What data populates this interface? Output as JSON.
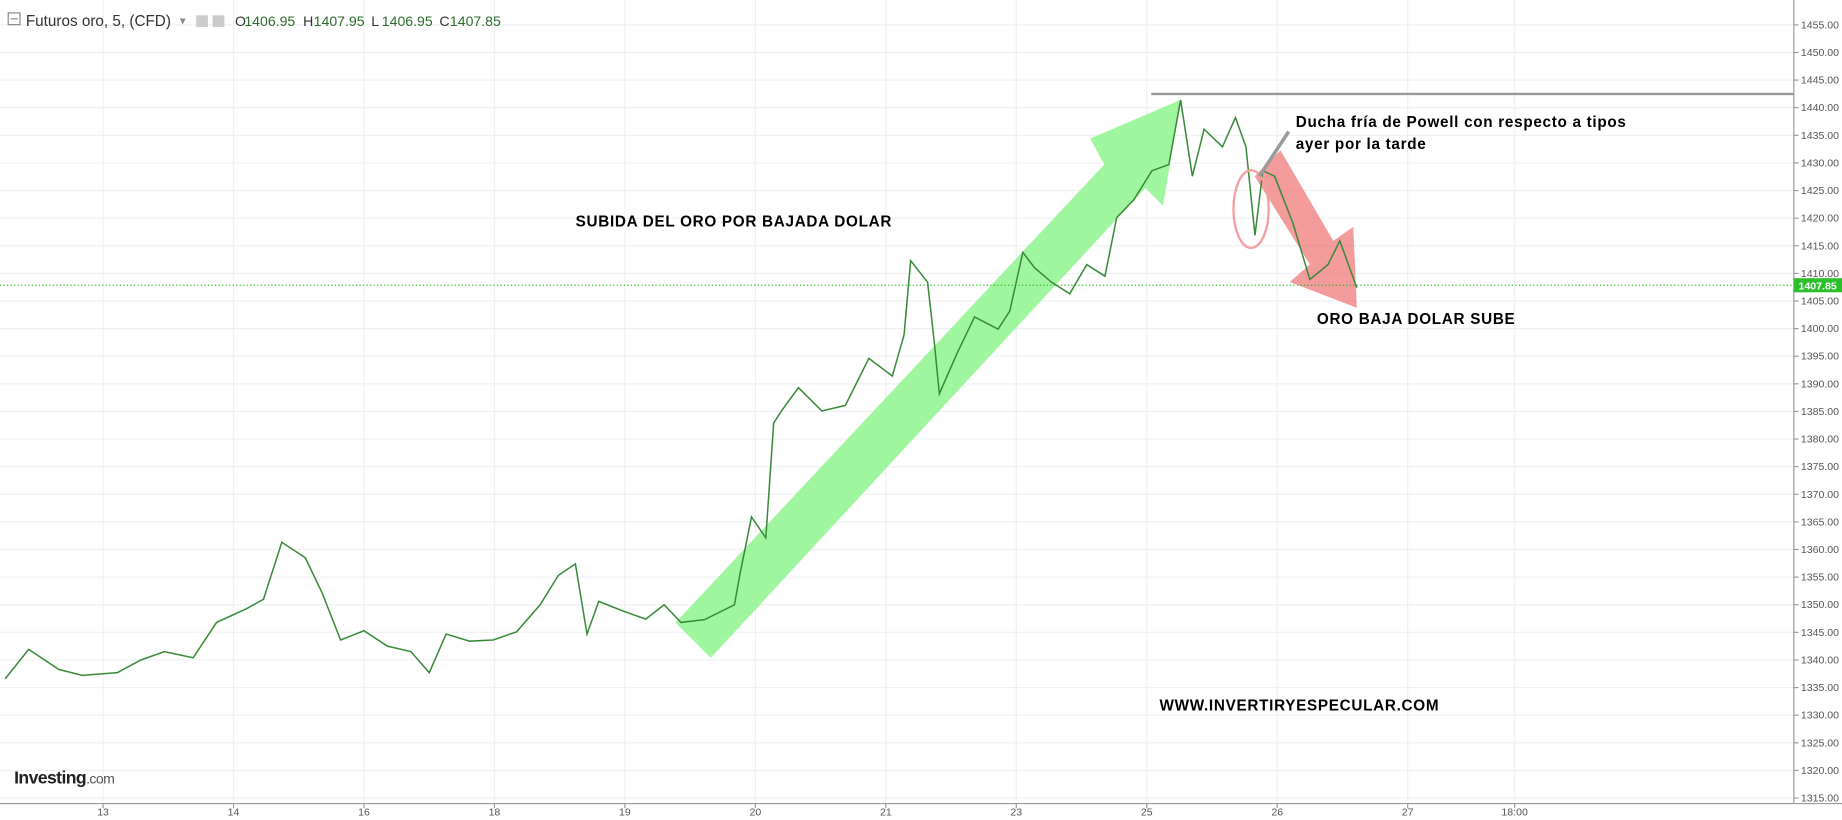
{
  "chart_data": {
    "type": "line",
    "title": "Futuros oro, 5, (CFD)",
    "ohlc": [
      {
        "label": "O",
        "value": 1406.95
      },
      {
        "label": "H",
        "value": 1407.95
      },
      {
        "label": "L",
        "value": 1406.95
      },
      {
        "label": "C",
        "value": 1407.85
      }
    ],
    "color": "#3a8a3a",
    "x": [
      -0.75,
      -0.57,
      -0.34,
      -0.16,
      0.11,
      0.29,
      0.47,
      0.69,
      0.87,
      1.1,
      1.23,
      1.37,
      1.55,
      1.68,
      1.82,
      2.0,
      2.18,
      2.36,
      2.5,
      2.63,
      2.81,
      2.99,
      3.17,
      3.35,
      3.49,
      3.62,
      3.71,
      3.8,
      3.98,
      4.16,
      4.3,
      4.43,
      4.61,
      4.84,
      4.88,
      4.97,
      5.08,
      5.14,
      5.2,
      5.33,
      5.51,
      5.69,
      5.87,
      6.05,
      6.14,
      6.19,
      6.32,
      6.37,
      6.41,
      6.55,
      6.68,
      6.86,
      6.95,
      7.05,
      7.14,
      7.27,
      7.41,
      7.54,
      7.68,
      7.77,
      7.9,
      8.04,
      8.17,
      8.26,
      8.35,
      8.44,
      8.58,
      8.68,
      8.76,
      8.83,
      8.89,
      8.98,
      9.12,
      9.25,
      9.39,
      9.48,
      9.61
    ],
    "values": [
      1336.6,
      1341.9,
      1338.3,
      1337.2,
      1337.7,
      1340.0,
      1341.5,
      1340.4,
      1346.8,
      1349.3,
      1351.0,
      1361.3,
      1358.5,
      1352.1,
      1343.6,
      1345.3,
      1342.5,
      1341.5,
      1337.7,
      1344.7,
      1343.4,
      1343.6,
      1345.1,
      1350.0,
      1355.3,
      1357.4,
      1344.7,
      1350.6,
      1348.9,
      1347.4,
      1350.0,
      1346.8,
      1347.3,
      1350.0,
      1355.3,
      1365.9,
      1362.1,
      1382.9,
      1385.1,
      1389.3,
      1385.1,
      1386.1,
      1394.6,
      1391.4,
      1398.9,
      1412.3,
      1408.4,
      1397.8,
      1388.2,
      1395.7,
      1402.1,
      1399.9,
      1403.2,
      1413.8,
      1411.0,
      1408.4,
      1406.3,
      1411.6,
      1409.5,
      1420.1,
      1423.3,
      1428.6,
      1429.7,
      1441.4,
      1427.6,
      1436.1,
      1432.9,
      1438.2,
      1432.9,
      1416.9,
      1428.6,
      1427.6,
      1419.1,
      1408.9,
      1411.6,
      1415.9,
      1407.4
    ],
    "xlim": [
      -0.79,
      12.96
    ],
    "ylim": [
      1314,
      1459.5
    ],
    "xticks": [
      {
        "value": 0,
        "label": "13"
      },
      {
        "value": 1,
        "label": "14"
      },
      {
        "value": 2,
        "label": "16"
      },
      {
        "value": 3,
        "label": "18"
      },
      {
        "value": 4,
        "label": "19"
      },
      {
        "value": 5,
        "label": "20"
      },
      {
        "value": 6,
        "label": "21"
      },
      {
        "value": 7,
        "label": "23"
      },
      {
        "value": 8,
        "label": "25"
      },
      {
        "value": 9,
        "label": "26"
      },
      {
        "value": 10,
        "label": "27"
      },
      {
        "value": 10.82,
        "label": "18:00"
      }
    ],
    "yticks": [
      {
        "value": 1315,
        "label": "1315.00"
      },
      {
        "value": 1320,
        "label": "1320.00"
      },
      {
        "value": 1325,
        "label": "1325.00"
      },
      {
        "value": 1330,
        "label": "1330.00"
      },
      {
        "value": 1335,
        "label": "1335.00"
      },
      {
        "value": 1340,
        "label": "1340.00"
      },
      {
        "value": 1345,
        "label": "1345.00"
      },
      {
        "value": 1350,
        "label": "1350.00"
      },
      {
        "value": 1355,
        "label": "1355.00"
      },
      {
        "value": 1360,
        "label": "1360.00"
      },
      {
        "value": 1365,
        "label": "1365.00"
      },
      {
        "value": 1370,
        "label": "1370.00"
      },
      {
        "value": 1375,
        "label": "1375.00"
      },
      {
        "value": 1380,
        "label": "1380.00"
      },
      {
        "value": 1385,
        "label": "1385.00"
      },
      {
        "value": 1390,
        "label": "1390.00"
      },
      {
        "value": 1395,
        "label": "1395.00"
      },
      {
        "value": 1400,
        "label": "1400.00"
      },
      {
        "value": 1405,
        "label": "1405.00"
      },
      {
        "value": 1410,
        "label": "1410.00"
      },
      {
        "value": 1415,
        "label": "1415.00"
      },
      {
        "value": 1420,
        "label": "1420.00"
      },
      {
        "value": 1425,
        "label": "1425.00"
      },
      {
        "value": 1430,
        "label": "1430.00"
      },
      {
        "value": 1435,
        "label": "1435.00"
      },
      {
        "value": 1440,
        "label": "1440.00"
      },
      {
        "value": 1445,
        "label": "1445.00"
      },
      {
        "value": 1450,
        "label": "1450.00"
      },
      {
        "value": 1455,
        "label": "1455.00"
      }
    ],
    "grid": true,
    "last_price": 1407.85,
    "resistance_level": 1442.5,
    "annotations": [
      "SUBIDA DEL ORO POR BAJADA DOLAR",
      "Ducha fría de Powell con respecto a tipos",
      "ayer por la tarde",
      "ORO BAJA DOLAR SUBE",
      "WWW.INVERTIRYESPECULAR.COM"
    ],
    "branding": [
      "Investing",
      ".com"
    ]
  }
}
